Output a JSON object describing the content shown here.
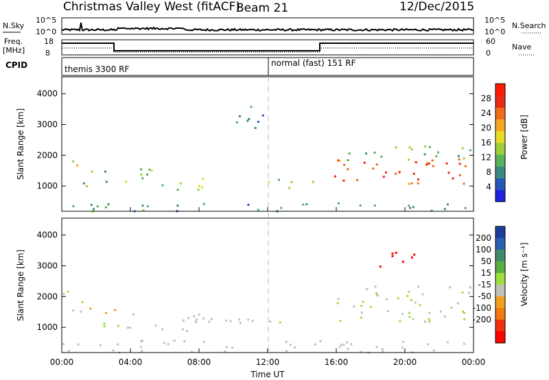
{
  "header": {
    "title": "Christmas Valley West (fitACF)",
    "beam": "Beam 21",
    "date": "12/Dec/2015"
  },
  "panels": {
    "nsky_label": "N.Sky",
    "nsearch_label": "N.Search",
    "nsky_ticks": [
      "10^5",
      "10^0"
    ],
    "nsearch_ticks": [
      "10^5",
      "10^0"
    ],
    "freq_label": "Freq.",
    "freq_unit": "[MHz]",
    "freq_ticks": [
      "18",
      "8"
    ],
    "nave_label": "Nave",
    "nave_ticks": [
      "60",
      "0"
    ],
    "cpid_label": "CPID",
    "cpid_modes": [
      {
        "name": "themis 3300 RF",
        "start_ut": 0
      },
      {
        "name": "normal (fast) 151 RF",
        "start_ut": 12
      }
    ]
  },
  "chart_data": [
    {
      "type": "heatmap",
      "id": "power",
      "ylabel": "Slant Range [km]",
      "xlabel": "",
      "xlim_hours": [
        0,
        24
      ],
      "ylim_km": [
        180,
        4550
      ],
      "y_ticks": [
        1000,
        2000,
        3000,
        4000
      ],
      "colorbar": {
        "label": "Power [dB]",
        "range": [
          0,
          32
        ],
        "ticks": [
          4,
          8,
          12,
          16,
          20,
          24,
          28
        ],
        "colors": [
          "#1c22e0",
          "#2a55b8",
          "#3b8a82",
          "#57b05a",
          "#9ccf3a",
          "#e5dc2a",
          "#f5a623",
          "#ef6a1b",
          "#e82b14",
          "#ff1a00"
        ]
      },
      "regions": [
        {
          "t": [
            0,
            1.0
          ],
          "r": [
            1350,
            2200
          ],
          "value": 19
        },
        {
          "t": [
            1.0,
            3.2
          ],
          "r": [
            1000,
            1250
          ],
          "value": 13
        },
        {
          "t": [
            1.5,
            3.0
          ],
          "r": [
            1450,
            1700
          ],
          "value": 11
        },
        {
          "t": [
            3.5,
            6.5
          ],
          "r": [
            1050,
            1600
          ],
          "value": 14
        },
        {
          "t": [
            6.5,
            9.5
          ],
          "r": [
            850,
            1300
          ],
          "value": 15
        },
        {
          "t": [
            12.0,
            14.8
          ],
          "r": [
            900,
            1250
          ],
          "value": 13
        },
        {
          "t": [
            15.8,
            24.0
          ],
          "r": [
            1100,
            1900
          ],
          "value": 26
        },
        {
          "t": [
            16.0,
            24.0
          ],
          "r": [
            1800,
            2350
          ],
          "value": 12
        },
        {
          "t": [
            9.8,
            11.8
          ],
          "r": [
            2900,
            3700
          ],
          "value": 9
        },
        {
          "t": [
            0,
            24.0
          ],
          "r": [
            200,
            500
          ],
          "value": 10
        }
      ]
    },
    {
      "type": "heatmap",
      "id": "velocity",
      "ylabel": "Slant Range [km]",
      "xlabel": "Time UT",
      "xlim_hours": [
        0,
        24
      ],
      "ylim_km": [
        180,
        4550
      ],
      "y_ticks": [
        1000,
        2000,
        3000,
        4000
      ],
      "x_ticks": [
        "00:00",
        "04:00",
        "08:00",
        "12:00",
        "16:00",
        "20:00",
        "00:00"
      ],
      "colorbar": {
        "label": "Velocity [m s⁻¹]",
        "ticks": [
          "200",
          "100",
          "50",
          "15",
          "-15",
          "-50",
          "-100",
          "-200"
        ],
        "colors": [
          "#1e3c9c",
          "#2a5fb0",
          "#3e8a6a",
          "#58b040",
          "#9be040",
          "#c0c0b8",
          "#f0a020",
          "#f07a10",
          "#f03010",
          "#ff0000"
        ]
      },
      "regions": [
        {
          "t": [
            0,
            1.2
          ],
          "r": [
            1350,
            2200
          ],
          "value": 0
        },
        {
          "t": [
            1.0,
            3.5
          ],
          "r": [
            1000,
            1250
          ],
          "value": 30
        },
        {
          "t": [
            1.5,
            4.0
          ],
          "r": [
            1450,
            1700
          ],
          "value": -70
        },
        {
          "t": [
            3.5,
            11.5
          ],
          "r": [
            900,
            1500
          ],
          "value": -40
        },
        {
          "t": [
            12.0,
            14.8
          ],
          "r": [
            900,
            1250
          ],
          "value": 0
        },
        {
          "t": [
            16.0,
            24.0
          ],
          "r": [
            1200,
            2400
          ],
          "value": 0
        },
        {
          "t": [
            0,
            24.0
          ],
          "r": [
            200,
            600
          ],
          "value": -40
        },
        {
          "t": [
            18.5,
            21.0
          ],
          "r": [
            3000,
            3500
          ],
          "value": -200
        }
      ]
    }
  ]
}
